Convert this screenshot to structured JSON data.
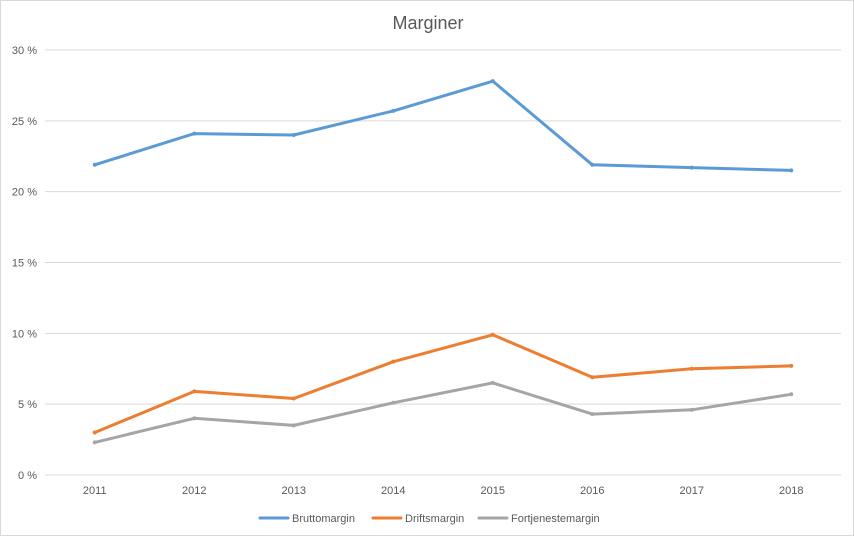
{
  "chart_data": {
    "type": "line",
    "title": "Marginer",
    "xlabel": "",
    "ylabel": "",
    "categories": [
      "2011",
      "2012",
      "2013",
      "2014",
      "2015",
      "2016",
      "2017",
      "2018"
    ],
    "ylim": [
      0,
      30
    ],
    "yticks": [
      0,
      5,
      10,
      15,
      20,
      25,
      30
    ],
    "ytick_labels": [
      "0 %",
      "5 %",
      "10 %",
      "15 %",
      "20 %",
      "25 %",
      "30 %"
    ],
    "grid": true,
    "legend_position": "bottom",
    "series": [
      {
        "name": "Bruttomargin",
        "color": "#5b9bd5",
        "values": [
          21.9,
          24.1,
          24.0,
          25.7,
          27.8,
          21.9,
          21.7,
          21.5
        ]
      },
      {
        "name": "Driftsmargin",
        "color": "#ed7d31",
        "values": [
          3.0,
          5.9,
          5.4,
          8.0,
          9.9,
          6.9,
          7.5,
          7.7
        ]
      },
      {
        "name": "Fortjenestemargin",
        "color": "#a5a5a5",
        "values": [
          2.3,
          4.0,
          3.5,
          5.1,
          6.5,
          4.3,
          4.6,
          5.7
        ]
      }
    ]
  }
}
